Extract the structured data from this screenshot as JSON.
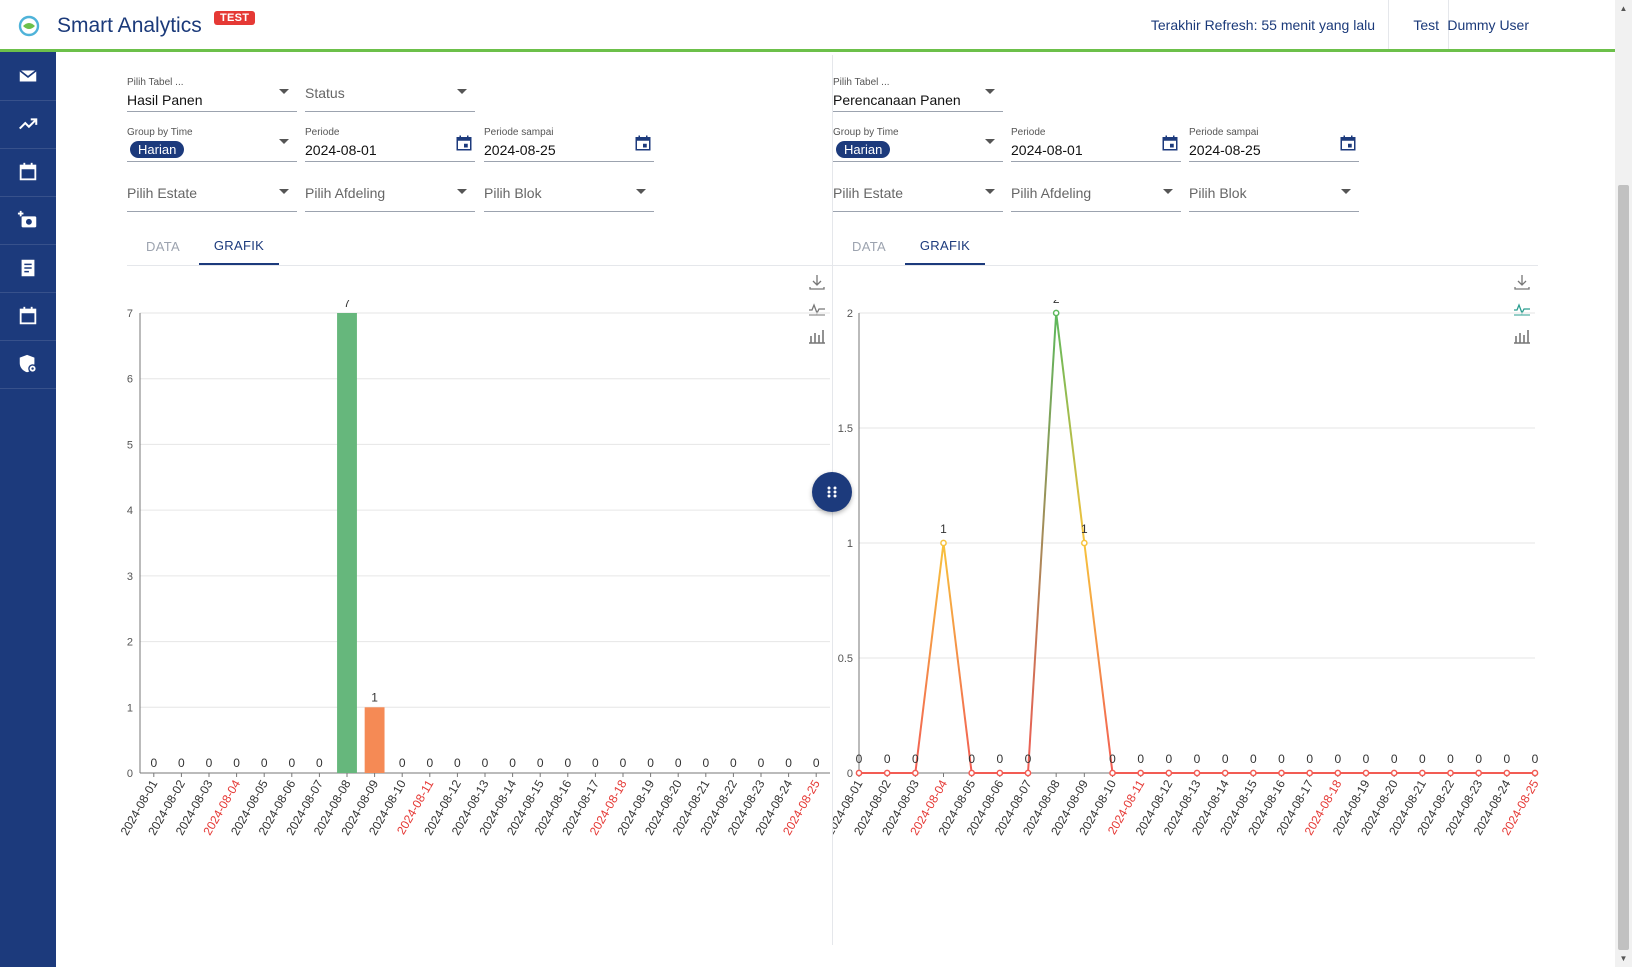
{
  "header": {
    "app_title": "Smart Analytics",
    "badge": "TEST",
    "refresh_text": "Terakhir Refresh: 55 menit yang lalu",
    "env": "Test",
    "user": "Dummy User"
  },
  "sidebar": {
    "items": [
      {
        "icon": "mail-icon"
      },
      {
        "icon": "trending-up-icon"
      },
      {
        "icon": "calendar-icon"
      },
      {
        "icon": "add-camera-icon"
      },
      {
        "icon": "receipt-icon"
      },
      {
        "icon": "calendar-icon"
      },
      {
        "icon": "shield-settings-icon"
      }
    ]
  },
  "left_panel": {
    "table": {
      "label": "Pilih Tabel ...",
      "value": "Hasil Panen"
    },
    "status": {
      "placeholder": "Status"
    },
    "group_by": {
      "label": "Group by Time",
      "value": "Harian"
    },
    "periode": {
      "label": "Periode",
      "value": "2024-08-01"
    },
    "periode_sampai": {
      "label": "Periode sampai",
      "value": "2024-08-25"
    },
    "estate": {
      "placeholder": "Pilih Estate"
    },
    "afdeling": {
      "placeholder": "Pilih Afdeling"
    },
    "blok": {
      "placeholder": "Pilih Blok"
    },
    "tabs": [
      "DATA",
      "GRAFIK"
    ],
    "active_tab": "GRAFIK"
  },
  "right_panel": {
    "table": {
      "label": "Pilih Tabel ...",
      "value": "Perencanaan Panen"
    },
    "group_by": {
      "label": "Group by Time",
      "value": "Harian"
    },
    "periode": {
      "label": "Periode",
      "value": "2024-08-01"
    },
    "periode_sampai": {
      "label": "Periode sampai",
      "value": "2024-08-25"
    },
    "estate": {
      "placeholder": "Pilih Estate"
    },
    "afdeling": {
      "placeholder": "Pilih Afdeling"
    },
    "blok": {
      "placeholder": "Pilih Blok"
    },
    "tabs": [
      "DATA",
      "GRAFIK"
    ],
    "active_tab": "GRAFIK"
  },
  "colors": {
    "primary": "#1c3a7c",
    "accent_green": "#6cc04a",
    "weekend_label": "#e53935",
    "bar_high": "#66b77c",
    "bar_low": "#f58a55",
    "line_high": "#5cb85c",
    "line_mid": "#f7c23c",
    "line_low": "#f25c54"
  },
  "chart_data": [
    {
      "type": "bar",
      "categories": [
        "2024-08-01",
        "2024-08-02",
        "2024-08-03",
        "2024-08-04",
        "2024-08-05",
        "2024-08-06",
        "2024-08-07",
        "2024-08-08",
        "2024-08-09",
        "2024-08-10",
        "2024-08-11",
        "2024-08-12",
        "2024-08-13",
        "2024-08-14",
        "2024-08-15",
        "2024-08-16",
        "2024-08-17",
        "2024-08-18",
        "2024-08-19",
        "2024-08-20",
        "2024-08-21",
        "2024-08-22",
        "2024-08-23",
        "2024-08-24",
        "2024-08-25"
      ],
      "values": [
        0,
        0,
        0,
        0,
        0,
        0,
        0,
        7,
        1,
        0,
        0,
        0,
        0,
        0,
        0,
        0,
        0,
        0,
        0,
        0,
        0,
        0,
        0,
        0,
        0
      ],
      "highlight_categories": [
        "2024-08-04",
        "2024-08-11",
        "2024-08-18",
        "2024-08-25"
      ],
      "yticks": [
        0,
        1,
        2,
        3,
        4,
        5,
        6,
        7
      ],
      "ylim": [
        0,
        7
      ],
      "grid": true
    },
    {
      "type": "line",
      "categories": [
        "2024-08-01",
        "2024-08-02",
        "2024-08-03",
        "2024-08-04",
        "2024-08-05",
        "2024-08-06",
        "2024-08-07",
        "2024-08-08",
        "2024-08-09",
        "2024-08-10",
        "2024-08-11",
        "2024-08-12",
        "2024-08-13",
        "2024-08-14",
        "2024-08-15",
        "2024-08-16",
        "2024-08-17",
        "2024-08-18",
        "2024-08-19",
        "2024-08-20",
        "2024-08-21",
        "2024-08-22",
        "2024-08-23",
        "2024-08-24",
        "2024-08-25"
      ],
      "values": [
        0,
        0,
        0,
        1,
        0,
        0,
        0,
        2,
        1,
        0,
        0,
        0,
        0,
        0,
        0,
        0,
        0,
        0,
        0,
        0,
        0,
        0,
        0,
        0,
        0
      ],
      "highlight_categories": [
        "2024-08-04",
        "2024-08-11",
        "2024-08-18",
        "2024-08-25"
      ],
      "yticks": [
        0,
        0.5,
        1,
        1.5,
        2
      ],
      "ylim": [
        0,
        2
      ],
      "grid": true
    }
  ]
}
